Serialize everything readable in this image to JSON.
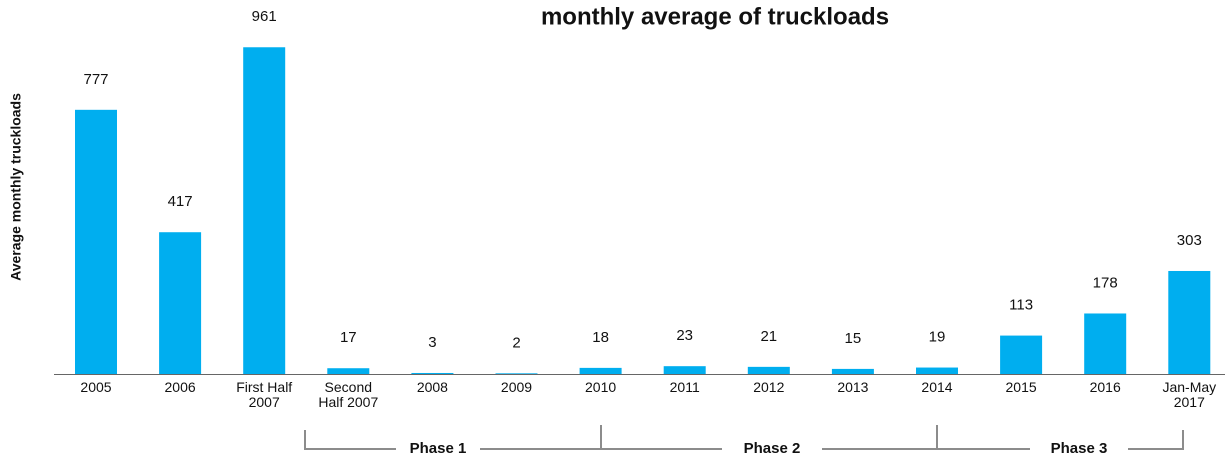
{
  "chart_data": {
    "type": "bar",
    "title": "monthly average of truckloads",
    "y_label": "Average monthly truckloads",
    "categories": [
      "2005",
      "2006",
      "First Half 2007",
      "Second Half 2007",
      "2008",
      "2009",
      "2010",
      "2011",
      "2012",
      "2013",
      "2014",
      "2015",
      "2016",
      "Jan-May 2017"
    ],
    "values": [
      777,
      417,
      961,
      17,
      3,
      2,
      18,
      23,
      21,
      15,
      19,
      113,
      178,
      303
    ],
    "color": "#00aeef",
    "phases": [
      {
        "label": "Phase 1"
      },
      {
        "label": "Phase 2"
      },
      {
        "label": "Phase 3"
      }
    ]
  }
}
